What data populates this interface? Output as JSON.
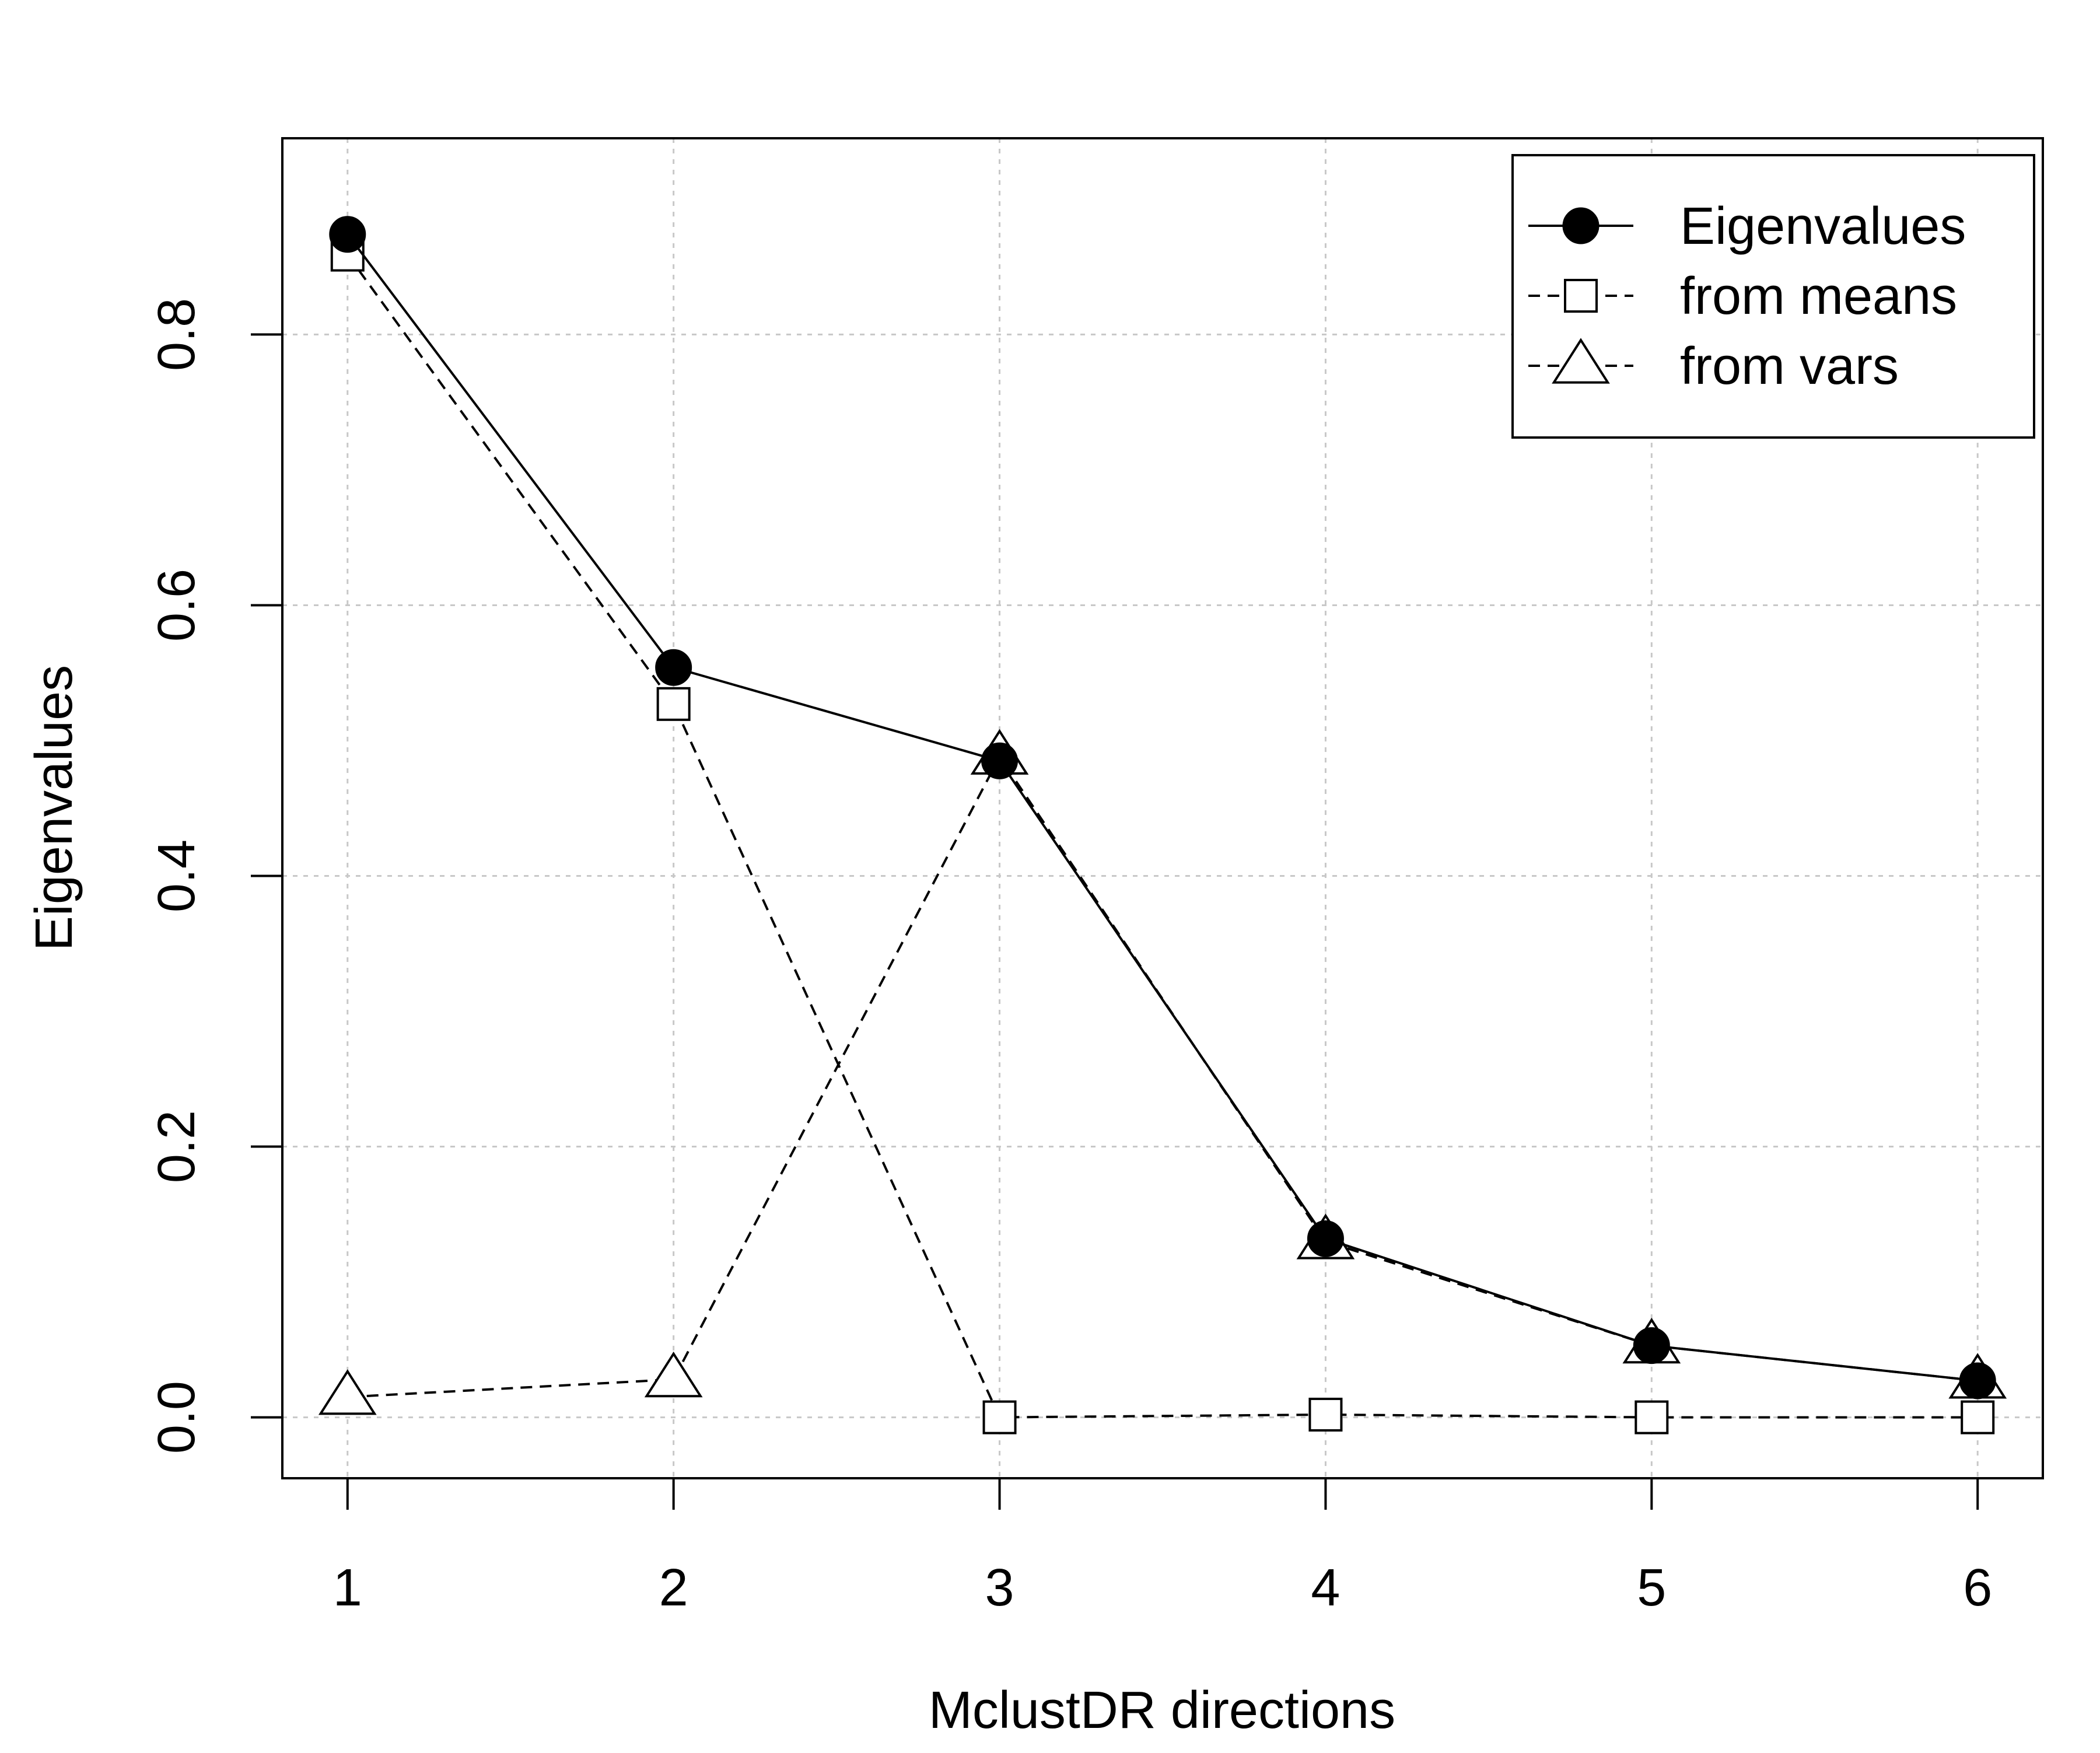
{
  "chart_data": {
    "type": "line",
    "title": "",
    "xlabel": "MclustDR directions",
    "ylabel": "Eigenvalues",
    "x": [
      1,
      2,
      3,
      4,
      5,
      6
    ],
    "xlim": [
      0.8,
      6.2
    ],
    "ylim": [
      -0.045,
      0.945
    ],
    "xticks": [
      "1",
      "2",
      "3",
      "4",
      "5",
      "6"
    ],
    "yticks": [
      "0.0",
      "0.2",
      "0.4",
      "0.6",
      "0.8"
    ],
    "ytick_values": [
      0.0,
      0.2,
      0.4,
      0.6,
      0.8
    ],
    "grid": true,
    "legend_position": "top-right",
    "series": [
      {
        "name": "Eigenvalues",
        "values": [
          0.874,
          0.554,
          0.485,
          0.132,
          0.053,
          0.027
        ],
        "line": "solid",
        "marker": "filled-circle"
      },
      {
        "name": "from means",
        "values": [
          0.859,
          0.527,
          0.0,
          0.002,
          0.0,
          0.0
        ],
        "line": "dashed",
        "marker": "open-square"
      },
      {
        "name": "from vars",
        "values": [
          0.015,
          0.028,
          0.488,
          0.13,
          0.053,
          0.027
        ],
        "line": "dashed",
        "marker": "open-triangle"
      }
    ]
  }
}
